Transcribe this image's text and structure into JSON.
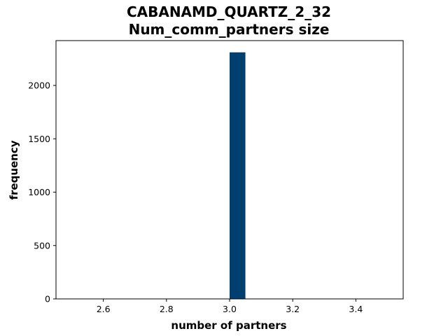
{
  "chart_data": {
    "type": "bar",
    "title": [
      "CABANAMD_QUARTZ_2_32",
      "Num_comm_partners size"
    ],
    "xlabel": "number of partners",
    "ylabel": "frequency",
    "xlim": [
      2.45,
      3.55
    ],
    "ylim": [
      0,
      2420
    ],
    "x_ticks": [
      2.6,
      2.8,
      3.0,
      3.2,
      3.4
    ],
    "x_tick_labels": [
      "2.6",
      "2.8",
      "3.0",
      "3.2",
      "3.4"
    ],
    "y_ticks": [
      0,
      500,
      1000,
      1500,
      2000
    ],
    "y_tick_labels": [
      "0",
      "500",
      "1000",
      "1500",
      "2000"
    ],
    "bins": [
      {
        "x_start": 3.0,
        "x_end": 3.05,
        "value": 2310
      }
    ],
    "bar_color": "#003f6e",
    "grid": false,
    "legend": "none"
  }
}
